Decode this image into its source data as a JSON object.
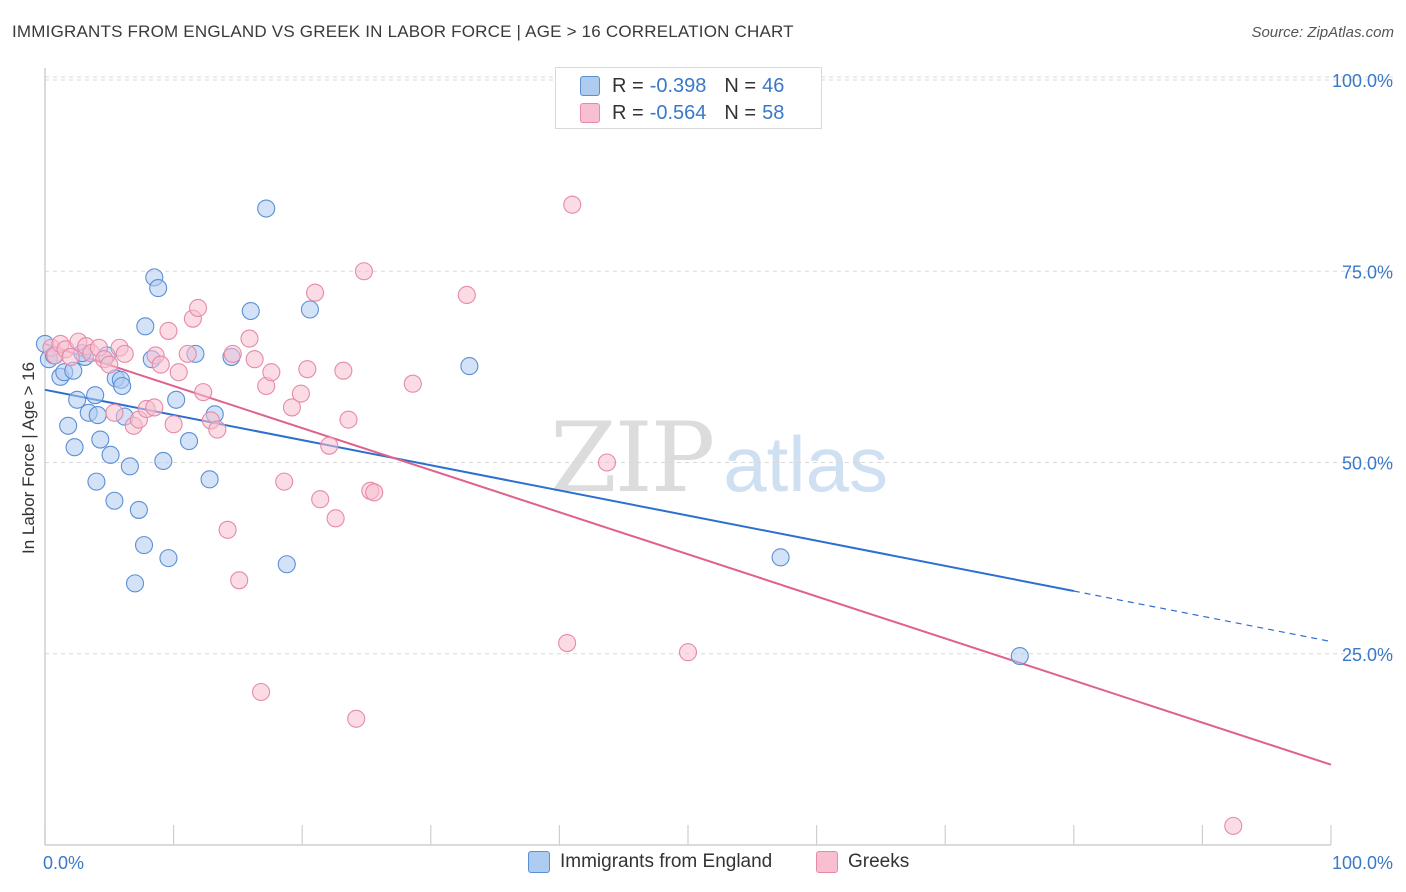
{
  "title": "IMMIGRANTS FROM ENGLAND VS GREEK IN LABOR FORCE | AGE > 16 CORRELATION CHART",
  "source": "Source: ZipAtlas.com",
  "watermark": {
    "zip": "ZIP",
    "atlas": "atlas"
  },
  "legend_top": [
    {
      "r_label": "R =",
      "r_value": "-0.398",
      "n_label": "N =",
      "n_value": "46"
    },
    {
      "r_label": "R =",
      "r_value": "-0.564",
      "n_label": "N =",
      "n_value": "58"
    }
  ],
  "legend_bottom": [
    "Immigrants from England",
    "Greeks"
  ],
  "colors": {
    "blue_fill": "#aecbf0",
    "blue_stroke": "#5b8fd6",
    "blue_line": "#2d6fcf",
    "pink_fill": "#f7bfd0",
    "pink_stroke": "#e68aa8",
    "pink_line": "#e0608e",
    "axis_text": "#3a78c9",
    "grid": "#d8d8d8"
  },
  "chart_data": {
    "type": "scatter",
    "title": "IMMIGRANTS FROM ENGLAND VS GREEK IN LABOR FORCE | AGE > 16 CORRELATION CHART",
    "xlabel": "",
    "ylabel": "In Labor Force | Age > 16",
    "xlim": [
      0,
      100
    ],
    "ylim": [
      0,
      100
    ],
    "x_tick_labels": [
      "0.0%",
      "100.0%"
    ],
    "y_ticks": [
      25,
      50,
      75,
      100
    ],
    "y_tick_labels": [
      "25.0%",
      "50.0%",
      "75.0%",
      "100.0%"
    ],
    "grid": true,
    "legend_position": "top-center",
    "series": [
      {
        "name": "Immigrants from England",
        "R": -0.398,
        "N": 46,
        "trend": {
          "x": [
            0,
            80
          ],
          "y": [
            59.5,
            33.2
          ],
          "dashed_to": [
            100,
            26.6
          ]
        },
        "points": [
          [
            0,
            65.5
          ],
          [
            0.3,
            63.5
          ],
          [
            1.2,
            61.2
          ],
          [
            1.5,
            61.8
          ],
          [
            2.2,
            62.0
          ],
          [
            1.8,
            54.8
          ],
          [
            2.3,
            52.0
          ],
          [
            2.5,
            58.2
          ],
          [
            3.1,
            63.8
          ],
          [
            3.4,
            56.5
          ],
          [
            3.9,
            58.8
          ],
          [
            4.1,
            56.2
          ],
          [
            4.0,
            47.5
          ],
          [
            4.3,
            53.0
          ],
          [
            5.1,
            51.0
          ],
          [
            5.5,
            61.0
          ],
          [
            5.4,
            45.0
          ],
          [
            5.9,
            60.8
          ],
          [
            6.2,
            56.0
          ],
          [
            6.6,
            49.5
          ],
          [
            7.3,
            43.8
          ],
          [
            7.7,
            39.2
          ],
          [
            7.0,
            34.2
          ],
          [
            7.8,
            67.8
          ],
          [
            8.5,
            74.2
          ],
          [
            8.8,
            72.8
          ],
          [
            8.3,
            63.5
          ],
          [
            9.2,
            50.2
          ],
          [
            9.6,
            37.5
          ],
          [
            10.2,
            58.2
          ],
          [
            11.2,
            52.8
          ],
          [
            11.7,
            64.2
          ],
          [
            12.8,
            47.8
          ],
          [
            13.2,
            56.3
          ],
          [
            14.5,
            63.8
          ],
          [
            16.0,
            69.8
          ],
          [
            17.2,
            83.2
          ],
          [
            18.8,
            36.7
          ],
          [
            20.6,
            70.0
          ],
          [
            33.0,
            62.6
          ],
          [
            57.2,
            37.6
          ],
          [
            75.8,
            24.7
          ],
          [
            0.7,
            64.0
          ],
          [
            2.9,
            64.3
          ],
          [
            4.8,
            64.0
          ],
          [
            6.0,
            60.0
          ]
        ]
      },
      {
        "name": "Greeks",
        "R": -0.564,
        "N": 58,
        "trend": {
          "x": [
            0,
            100
          ],
          "y": [
            65.5,
            10.5
          ]
        },
        "points": [
          [
            0.5,
            65.0
          ],
          [
            0.8,
            64.0
          ],
          [
            1.2,
            65.5
          ],
          [
            1.6,
            64.8
          ],
          [
            2.0,
            63.8
          ],
          [
            2.6,
            65.8
          ],
          [
            3.2,
            65.2
          ],
          [
            3.6,
            64.3
          ],
          [
            4.2,
            65.0
          ],
          [
            4.6,
            63.5
          ],
          [
            5.0,
            62.8
          ],
          [
            5.4,
            56.5
          ],
          [
            5.8,
            65.0
          ],
          [
            6.2,
            64.2
          ],
          [
            6.9,
            54.8
          ],
          [
            7.3,
            55.6
          ],
          [
            7.9,
            57.0
          ],
          [
            8.5,
            57.2
          ],
          [
            8.6,
            64.0
          ],
          [
            9.0,
            62.8
          ],
          [
            9.6,
            67.2
          ],
          [
            10.0,
            55.0
          ],
          [
            10.4,
            61.8
          ],
          [
            11.1,
            64.2
          ],
          [
            11.5,
            68.8
          ],
          [
            11.9,
            70.2
          ],
          [
            12.3,
            59.2
          ],
          [
            12.9,
            55.5
          ],
          [
            13.4,
            54.3
          ],
          [
            14.2,
            41.2
          ],
          [
            14.6,
            64.2
          ],
          [
            15.1,
            34.6
          ],
          [
            15.9,
            66.2
          ],
          [
            16.3,
            63.5
          ],
          [
            16.8,
            20.0
          ],
          [
            17.2,
            60.0
          ],
          [
            17.6,
            61.8
          ],
          [
            18.6,
            47.5
          ],
          [
            19.2,
            57.2
          ],
          [
            19.9,
            59.0
          ],
          [
            20.4,
            62.2
          ],
          [
            21.0,
            72.2
          ],
          [
            21.4,
            45.2
          ],
          [
            22.1,
            52.2
          ],
          [
            22.6,
            42.7
          ],
          [
            23.2,
            62.0
          ],
          [
            23.6,
            55.6
          ],
          [
            24.2,
            16.5
          ],
          [
            24.8,
            75.0
          ],
          [
            25.3,
            46.3
          ],
          [
            25.6,
            46.1
          ],
          [
            28.6,
            60.3
          ],
          [
            32.8,
            71.9
          ],
          [
            41.0,
            83.7
          ],
          [
            40.6,
            26.4
          ],
          [
            43.7,
            50.0
          ],
          [
            50.0,
            25.2
          ],
          [
            92.4,
            2.5
          ]
        ]
      }
    ]
  }
}
